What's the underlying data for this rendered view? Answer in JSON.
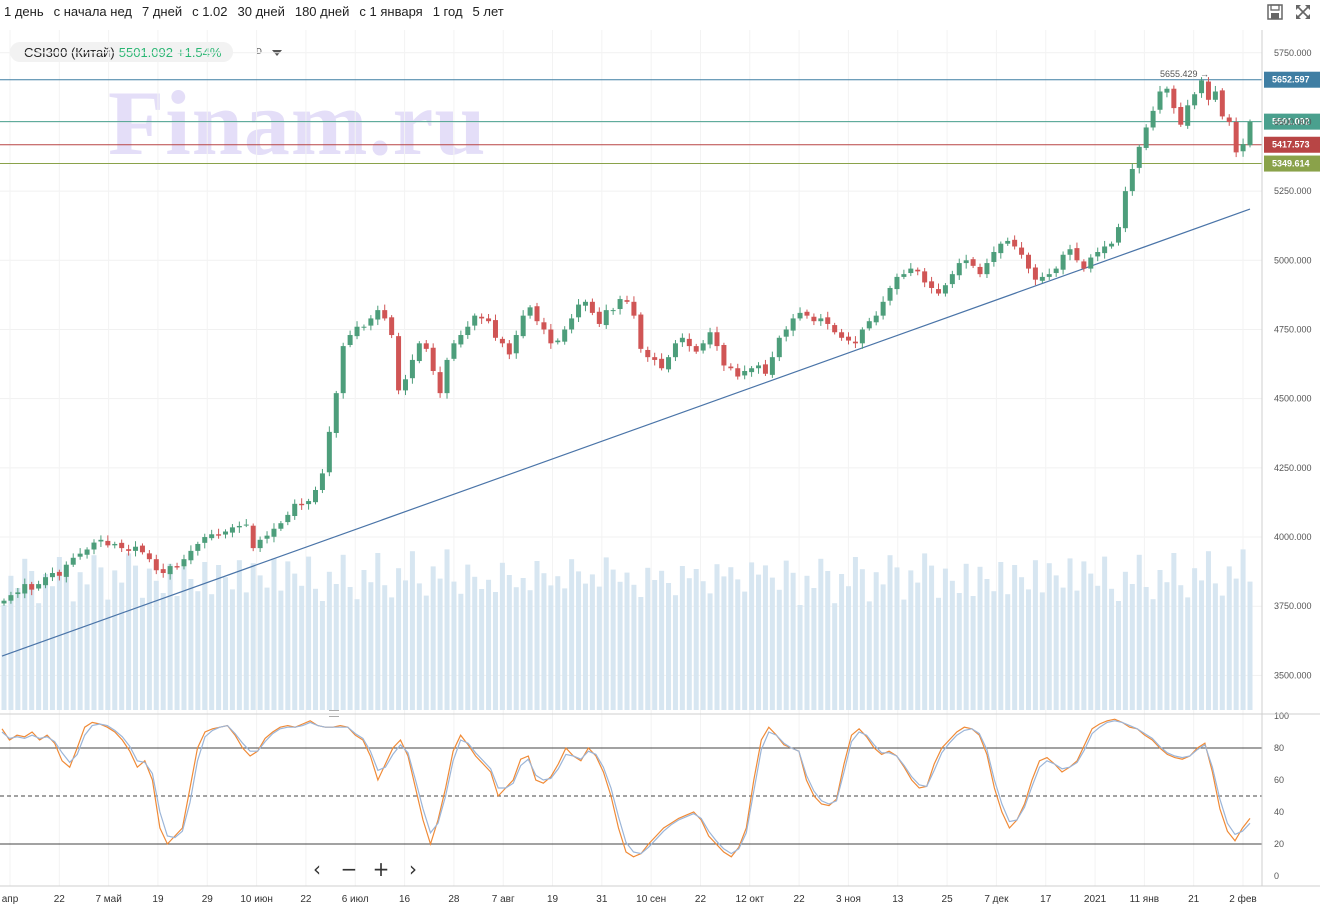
{
  "periods": [
    "1 день",
    "с начала нед",
    "7 дней",
    "с 1.02",
    "30 дней",
    "180 дней",
    "с 1 января",
    "1 год",
    "5 лет"
  ],
  "toolbar": {
    "save_icon": "save-icon",
    "fullscreen_icon": "expand-icon"
  },
  "ticker": {
    "name": "CSI300 (Китай)",
    "price": "5501.092",
    "change": "+1.54%",
    "interval": "D"
  },
  "watermark": "Finam.ru",
  "colors": {
    "up": "#4d9e7b",
    "down": "#d05555",
    "volume": "#d7e6f1",
    "k_line": "#f08a36",
    "d_line": "#9bb5d8"
  },
  "chart_data": {
    "type": "candlestick",
    "price_axis": {
      "min": 3375,
      "max": 5825,
      "ticks": [
        "5750.000",
        "5500.000",
        "5250.000",
        "5000.000",
        "4750.000",
        "4500.000",
        "4250.000",
        "4000.000",
        "3750.000",
        "3500.000"
      ]
    },
    "x_labels": [
      "апр",
      "22",
      "7 май",
      "19",
      "29",
      "10 июн",
      "22",
      "6 июл",
      "16",
      "28",
      "7 авг",
      "19",
      "31",
      "10 сен",
      "22",
      "12 окт",
      "22",
      "3 ноя",
      "13",
      "25",
      "7 дек",
      "17",
      "2021",
      "11 янв",
      "21",
      "2 фев"
    ],
    "hlines": [
      {
        "value": 5652.597,
        "label": "5652.597",
        "color": "#3f7ea3"
      },
      {
        "value": 5501.092,
        "label": "5501.092",
        "color": "#4aa08e"
      },
      {
        "value": 5417.573,
        "label": "5417.573",
        "color": "#b84545"
      },
      {
        "value": 5349.614,
        "label": "5349.614",
        "color": "#8aa24a"
      }
    ],
    "annotation": {
      "value": 5655.429,
      "label": "5655.429 →"
    },
    "trendline": {
      "start": 3570,
      "end": 5185
    },
    "close": [
      3770,
      3790,
      3800,
      3830,
      3810,
      3830,
      3855,
      3870,
      3860,
      3900,
      3925,
      3940,
      3955,
      3980,
      3990,
      3970,
      3975,
      3960,
      3950,
      3965,
      3945,
      3920,
      3880,
      3870,
      3895,
      3890,
      3920,
      3950,
      3975,
      4000,
      4010,
      4005,
      4020,
      4035,
      4040,
      4045,
      3960,
      3990,
      4005,
      4030,
      4050,
      4080,
      4120,
      4115,
      4130,
      4170,
      4230,
      4380,
      4520,
      4690,
      4730,
      4760,
      4760,
      4790,
      4820,
      4790,
      4730,
      4530,
      4570,
      4640,
      4700,
      4680,
      4600,
      4520,
      4640,
      4700,
      4730,
      4760,
      4800,
      4790,
      4780,
      4720,
      4700,
      4660,
      4730,
      4800,
      4830,
      4780,
      4750,
      4700,
      4710,
      4750,
      4790,
      4840,
      4850,
      4810,
      4770,
      4820,
      4820,
      4860,
      4850,
      4800,
      4680,
      4650,
      4640,
      4610,
      4650,
      4700,
      4720,
      4690,
      4670,
      4700,
      4740,
      4690,
      4620,
      4610,
      4580,
      4600,
      4610,
      4620,
      4590,
      4650,
      4720,
      4750,
      4790,
      4810,
      4800,
      4780,
      4790,
      4770,
      4740,
      4720,
      4710,
      4700,
      4750,
      4780,
      4800,
      4850,
      4900,
      4940,
      4950,
      4970,
      4960,
      4920,
      4900,
      4880,
      4910,
      4950,
      4990,
      5000,
      4980,
      4950,
      4990,
      5030,
      5060,
      5070,
      5050,
      5020,
      4970,
      4930,
      4940,
      4950,
      4970,
      5020,
      5040,
      5000,
      4970,
      5010,
      5030,
      5050,
      5060,
      5120,
      5250,
      5330,
      5410,
      5480,
      5540,
      5610,
      5620,
      5550,
      5490,
      5560,
      5600,
      5650,
      5580,
      5610,
      5520,
      5500,
      5390,
      5420,
      5501
    ],
    "series": [
      {
        "name": "%K",
        "values": [
          92,
          85,
          88,
          87,
          90,
          85,
          88,
          83,
          72,
          68,
          80,
          93,
          96,
          95,
          93,
          90,
          85,
          78,
          68,
          72,
          60,
          30,
          20,
          25,
          30,
          55,
          80,
          90,
          92,
          93,
          94,
          88,
          80,
          75,
          78,
          86,
          90,
          93,
          94,
          93,
          95,
          97,
          94,
          93,
          93,
          94,
          93,
          88,
          85,
          75,
          60,
          70,
          80,
          85,
          75,
          55,
          35,
          20,
          35,
          55,
          78,
          88,
          82,
          75,
          70,
          65,
          50,
          55,
          60,
          73,
          75,
          60,
          58,
          62,
          70,
          80,
          75,
          72,
          80,
          75,
          65,
          50,
          30,
          15,
          12,
          14,
          20,
          25,
          30,
          33,
          36,
          38,
          40,
          35,
          25,
          20,
          15,
          12,
          18,
          30,
          60,
          85,
          93,
          88,
          82,
          80,
          78,
          60,
          50,
          45,
          44,
          48,
          70,
          88,
          92,
          87,
          80,
          76,
          78,
          75,
          68,
          60,
          55,
          56,
          70,
          80,
          85,
          90,
          93,
          92,
          88,
          76,
          55,
          40,
          30,
          35,
          45,
          60,
          72,
          74,
          70,
          65,
          68,
          72,
          82,
          92,
          95,
          97,
          98,
          96,
          93,
          92,
          88,
          85,
          80,
          76,
          74,
          73,
          75,
          80,
          83,
          65,
          42,
          28,
          22,
          30,
          36
        ]
      },
      {
        "name": "%D",
        "values": [
          90,
          86,
          87,
          86,
          88,
          86,
          87,
          84,
          77,
          71,
          76,
          88,
          94,
          95,
          94,
          91,
          87,
          81,
          72,
          71,
          64,
          40,
          25,
          24,
          28,
          46,
          72,
          87,
          91,
          93,
          94,
          89,
          83,
          78,
          78,
          84,
          89,
          92,
          93,
          93,
          94,
          96,
          94,
          93,
          93,
          93,
          93,
          89,
          86,
          78,
          66,
          68,
          76,
          82,
          77,
          60,
          42,
          27,
          33,
          50,
          72,
          85,
          83,
          77,
          72,
          67,
          55,
          55,
          58,
          69,
          73,
          63,
          60,
          61,
          67,
          76,
          75,
          73,
          78,
          76,
          68,
          55,
          37,
          21,
          15,
          14,
          18,
          23,
          28,
          32,
          35,
          37,
          39,
          36,
          28,
          22,
          17,
          14,
          17,
          27,
          53,
          79,
          90,
          88,
          83,
          80,
          78,
          63,
          53,
          47,
          45,
          47,
          65,
          84,
          90,
          88,
          82,
          77,
          77,
          75,
          69,
          62,
          57,
          56,
          66,
          77,
          83,
          88,
          91,
          92,
          89,
          79,
          60,
          45,
          34,
          35,
          43,
          56,
          68,
          72,
          70,
          67,
          68,
          71,
          79,
          89,
          93,
          96,
          97,
          96,
          94,
          92,
          89,
          86,
          81,
          77,
          75,
          74,
          75,
          79,
          82,
          68,
          48,
          33,
          26,
          28,
          33
        ]
      }
    ],
    "stoch_axis": {
      "ticks": [
        "100",
        "80",
        "60",
        "40",
        "20",
        "0"
      ],
      "levels": [
        80,
        50,
        20
      ]
    }
  }
}
